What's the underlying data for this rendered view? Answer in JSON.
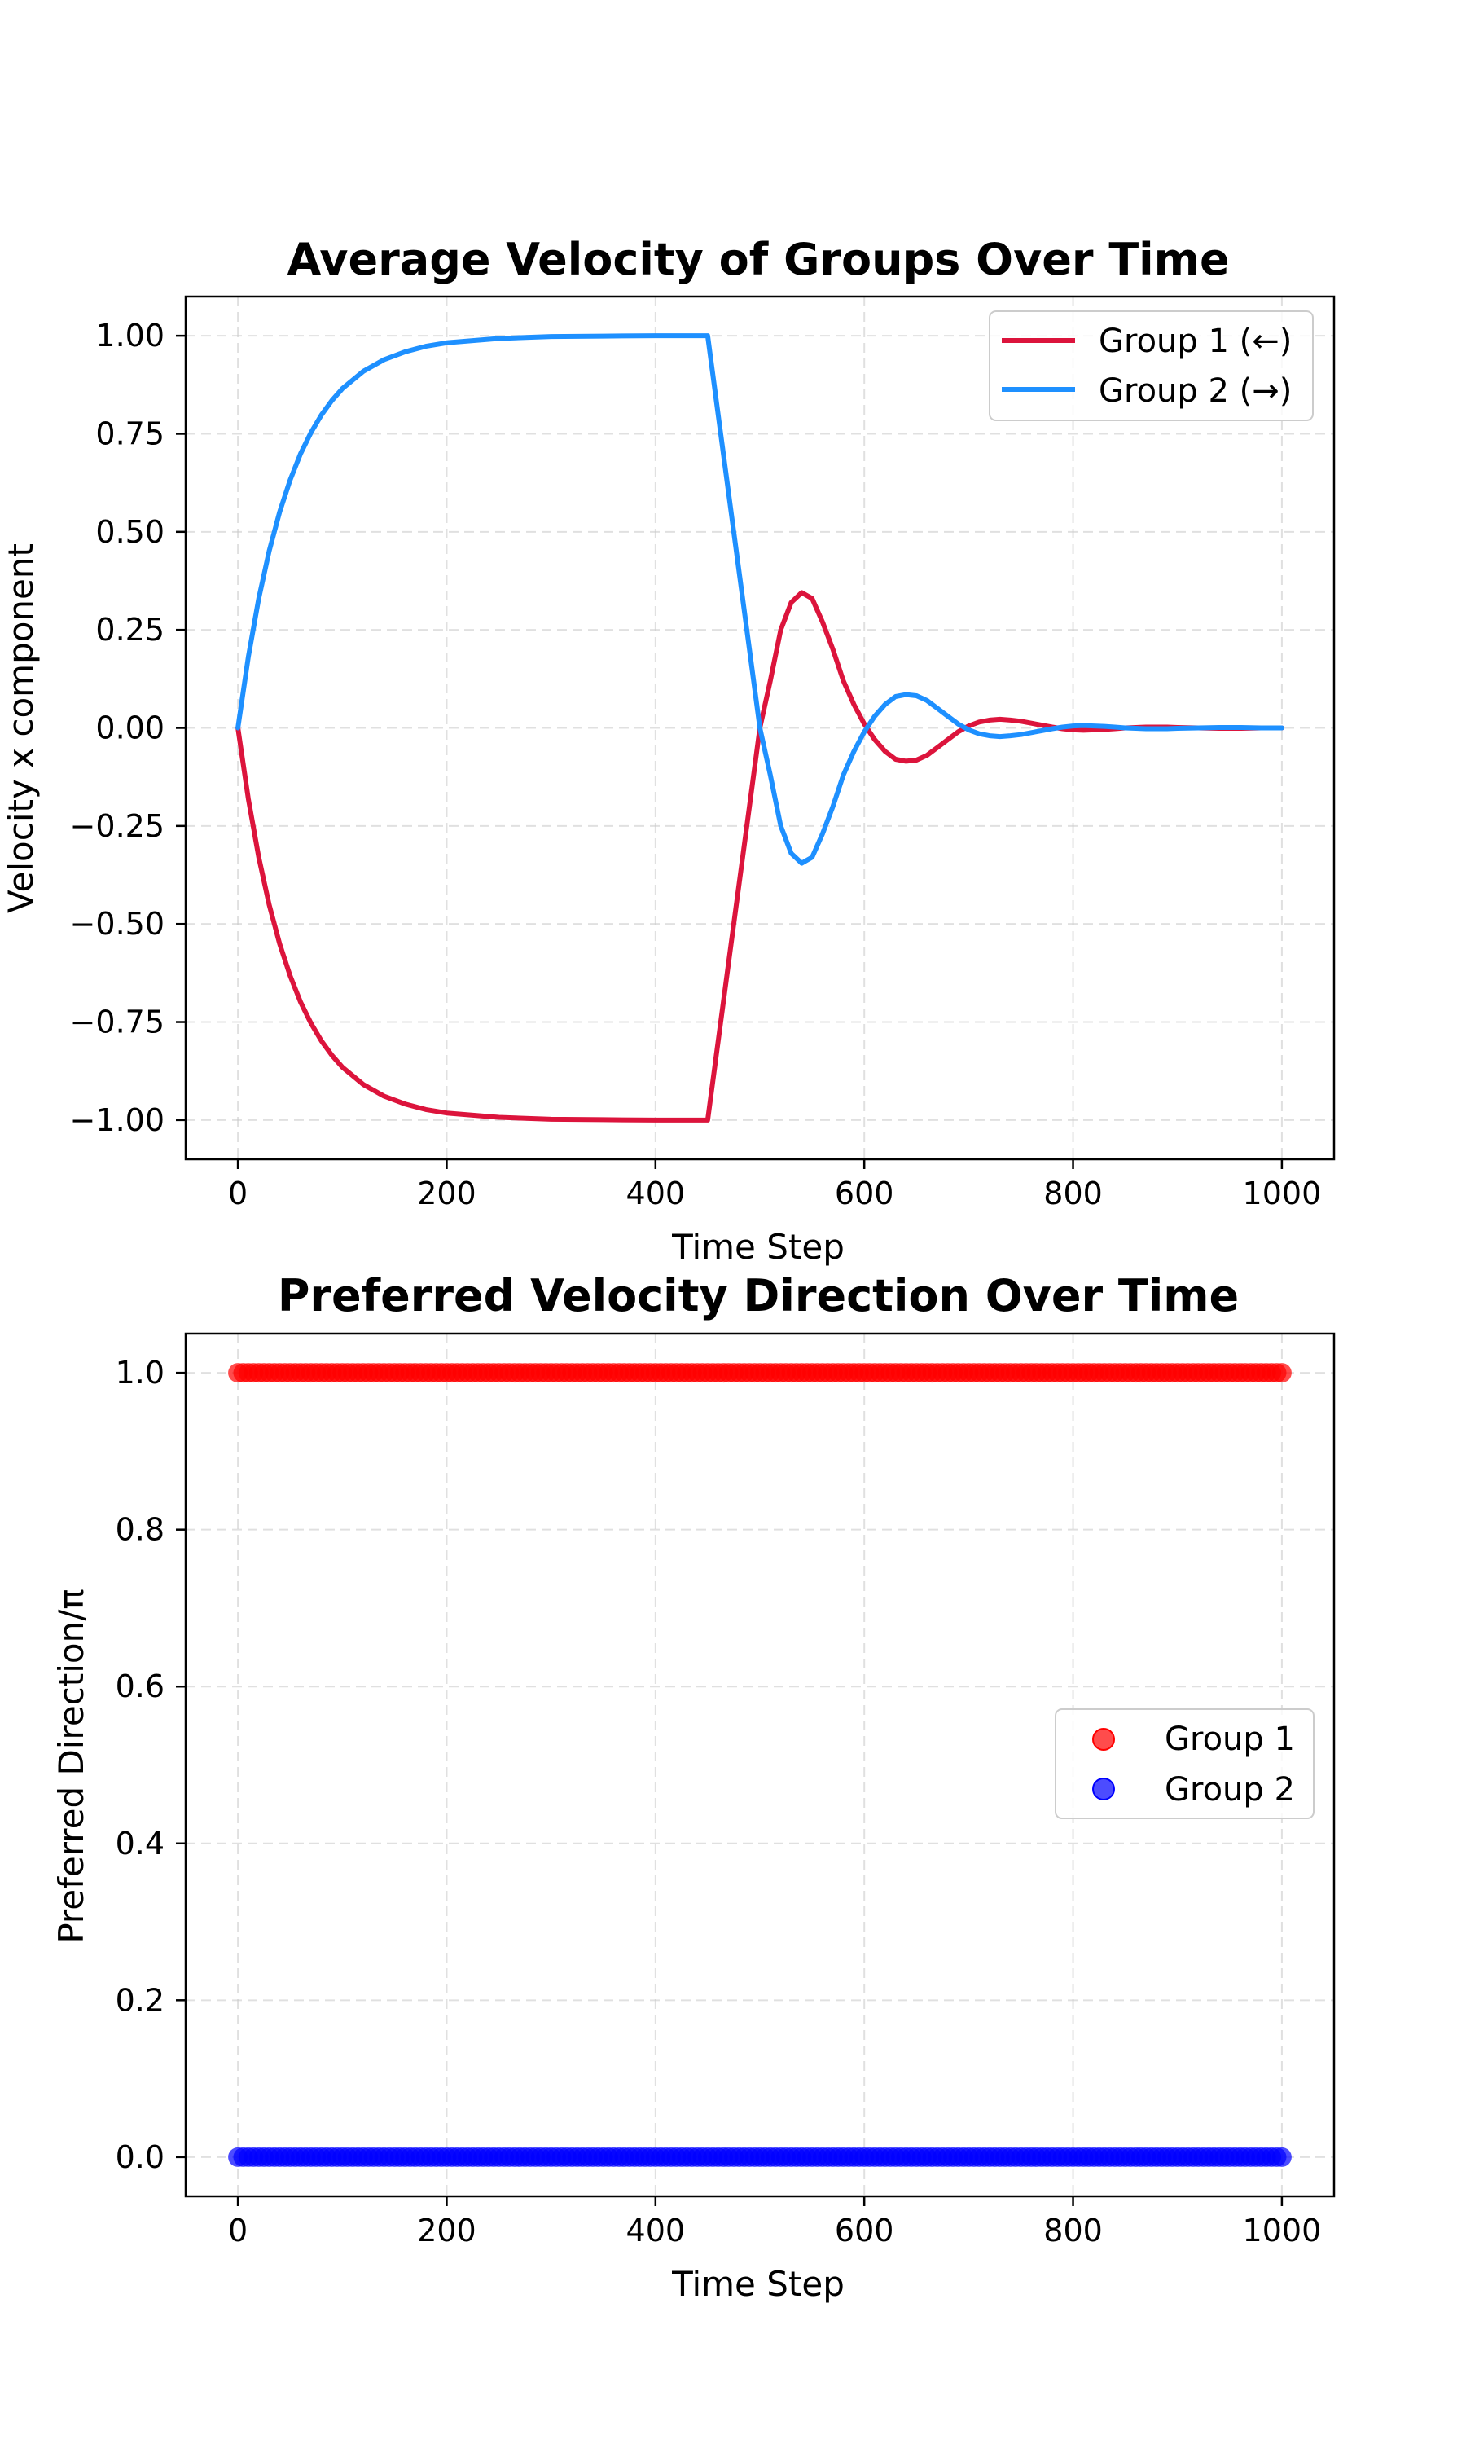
{
  "chart_data": [
    {
      "type": "line",
      "title": "Average Velocity of Groups Over Time",
      "xlabel": "Time Step",
      "ylabel": "Velocity x component",
      "xlim": [
        -50,
        1050
      ],
      "ylim": [
        -1.1,
        1.1
      ],
      "xticks": [
        0,
        200,
        400,
        600,
        800,
        1000
      ],
      "yticks": [
        1.0,
        0.75,
        0.5,
        0.25,
        0.0,
        -0.25,
        -0.5,
        -0.75,
        -1.0
      ],
      "xtick_labels": [
        "0",
        "200",
        "400",
        "600",
        "800",
        "1000"
      ],
      "ytick_labels": [
        "1.00",
        "0.75",
        "0.50",
        "0.25",
        "0.00",
        "−0.25",
        "−0.50",
        "−0.75",
        "−1.00"
      ],
      "grid": true,
      "legend_position": "upper-right",
      "series": [
        {
          "name": "Group 1 (←)",
          "color": "#DC143C",
          "x": [
            0,
            10,
            20,
            30,
            40,
            50,
            60,
            70,
            80,
            90,
            100,
            120,
            140,
            160,
            180,
            200,
            250,
            300,
            350,
            400,
            450,
            470,
            490,
            500,
            510,
            520,
            530,
            540,
            550,
            560,
            570,
            580,
            590,
            600,
            610,
            620,
            630,
            640,
            650,
            660,
            670,
            680,
            690,
            700,
            710,
            720,
            730,
            740,
            750,
            760,
            770,
            780,
            790,
            800,
            810,
            820,
            830,
            840,
            850,
            860,
            870,
            880,
            890,
            900,
            920,
            940,
            960,
            980,
            1000
          ],
          "y": [
            0.0,
            -0.181,
            -0.33,
            -0.451,
            -0.551,
            -0.632,
            -0.699,
            -0.753,
            -0.798,
            -0.835,
            -0.865,
            -0.909,
            -0.939,
            -0.959,
            -0.973,
            -0.982,
            -0.993,
            -0.998,
            -0.999,
            -1.0,
            -1.0,
            -0.6,
            -0.2,
            0.0,
            0.12,
            0.25,
            0.32,
            0.345,
            0.33,
            0.27,
            0.2,
            0.12,
            0.06,
            0.01,
            -0.03,
            -0.06,
            -0.08,
            -0.085,
            -0.082,
            -0.07,
            -0.05,
            -0.03,
            -0.01,
            0.005,
            0.015,
            0.02,
            0.022,
            0.02,
            0.017,
            0.012,
            0.007,
            0.002,
            -0.002,
            -0.005,
            -0.006,
            -0.005,
            -0.004,
            -0.002,
            0.0,
            0.001,
            0.002,
            0.002,
            0.002,
            0.001,
            0.0,
            -0.001,
            -0.001,
            0.0,
            0.0
          ]
        },
        {
          "name": "Group 2 (→)",
          "color": "#1E90FF",
          "x": [
            0,
            10,
            20,
            30,
            40,
            50,
            60,
            70,
            80,
            90,
            100,
            120,
            140,
            160,
            180,
            200,
            250,
            300,
            350,
            400,
            450,
            470,
            490,
            500,
            510,
            520,
            530,
            540,
            550,
            560,
            570,
            580,
            590,
            600,
            610,
            620,
            630,
            640,
            650,
            660,
            670,
            680,
            690,
            700,
            710,
            720,
            730,
            740,
            750,
            760,
            770,
            780,
            790,
            800,
            810,
            820,
            830,
            840,
            850,
            860,
            870,
            880,
            890,
            900,
            920,
            940,
            960,
            980,
            1000
          ],
          "y": [
            0.0,
            0.181,
            0.33,
            0.451,
            0.551,
            0.632,
            0.699,
            0.753,
            0.798,
            0.835,
            0.865,
            0.909,
            0.939,
            0.959,
            0.973,
            0.982,
            0.993,
            0.998,
            0.999,
            1.0,
            1.0,
            0.6,
            0.2,
            0.0,
            -0.12,
            -0.25,
            -0.32,
            -0.345,
            -0.33,
            -0.27,
            -0.2,
            -0.12,
            -0.06,
            -0.01,
            0.03,
            0.06,
            0.08,
            0.085,
            0.082,
            0.07,
            0.05,
            0.03,
            0.01,
            -0.005,
            -0.015,
            -0.02,
            -0.022,
            -0.02,
            -0.017,
            -0.012,
            -0.007,
            -0.002,
            0.002,
            0.005,
            0.006,
            0.005,
            0.004,
            0.002,
            0.0,
            -0.001,
            -0.002,
            -0.002,
            -0.002,
            -0.001,
            0.0,
            0.001,
            0.001,
            0.0,
            0.0
          ]
        }
      ]
    },
    {
      "type": "scatter",
      "title": "Preferred Velocity Direction Over Time",
      "xlabel": "Time Step",
      "ylabel": "Preferred Direction/π",
      "xlim": [
        -50,
        1050
      ],
      "ylim": [
        -0.05,
        1.05
      ],
      "xticks": [
        0,
        200,
        400,
        600,
        800,
        1000
      ],
      "yticks": [
        1.0,
        0.8,
        0.6,
        0.4,
        0.2,
        0.0
      ],
      "xtick_labels": [
        "0",
        "200",
        "400",
        "600",
        "800",
        "1000"
      ],
      "ytick_labels": [
        "1.0",
        "0.8",
        "0.6",
        "0.4",
        "0.2",
        "0.0"
      ],
      "grid": true,
      "legend_position": "center-right",
      "x_range": [
        0,
        1000
      ],
      "x_step": 5,
      "series": [
        {
          "name": "Group 1",
          "color": "#FF0000",
          "value": 1.0
        },
        {
          "name": "Group 2",
          "color": "#0000FF",
          "value": 0.0
        }
      ]
    }
  ]
}
